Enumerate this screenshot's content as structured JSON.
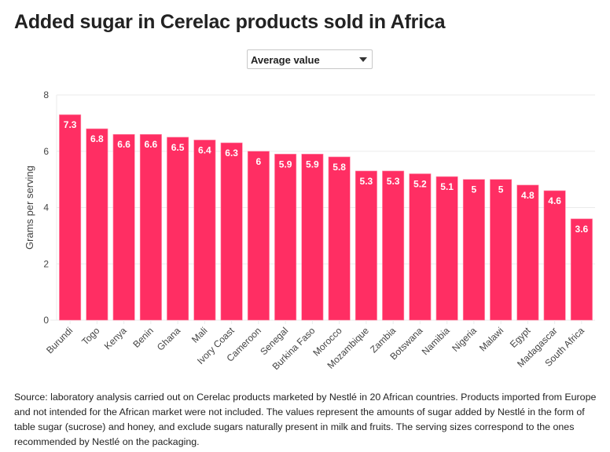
{
  "title": "Added sugar in Cerelac products sold in Africa",
  "dropdown": {
    "selected": "Average value",
    "icon": "caret-down-icon"
  },
  "colors": {
    "bar": "#ff2e63",
    "bar_edge": "#ff8fab",
    "grid": "#ebebeb",
    "label": "#ffffff"
  },
  "source": "Source: laboratory analysis carried out on Cerelac products marketed by Nestlé in 20 African countries. Products imported from Europe and not intended for the African market were not included. The values represent the amounts of sugar added by Nestlé in the form of table sugar (sucrose) and honey, and exclude sugars naturally present in milk and fruits. The serving sizes correspond to the ones recommended by Nestlé on the packaging.",
  "chart_data": {
    "type": "bar",
    "title": "Added sugar in Cerelac products sold in Africa",
    "xlabel": "",
    "ylabel": "Grams per serving",
    "ylim": [
      0,
      8
    ],
    "yticks": [
      0,
      2,
      4,
      6,
      8
    ],
    "grid": true,
    "legend": "none",
    "categories": [
      "Burundi",
      "Togo",
      "Kenya",
      "Benin",
      "Ghana",
      "Mali",
      "Ivory Coast",
      "Cameroon",
      "Senegal",
      "Burkina Faso",
      "Morocco",
      "Mozambique",
      "Zambia",
      "Botswana",
      "Namibia",
      "Nigeria",
      "Malawi",
      "Egypt",
      "Madagascar",
      "South Africa"
    ],
    "values": [
      7.3,
      6.8,
      6.6,
      6.6,
      6.5,
      6.4,
      6.3,
      6,
      5.9,
      5.9,
      5.8,
      5.3,
      5.3,
      5.2,
      5.1,
      5,
      5,
      4.8,
      4.6,
      3.6
    ],
    "data_labels": [
      "7.3",
      "6.8",
      "6.6",
      "6.6",
      "6.5",
      "6.4",
      "6.3",
      "6",
      "5.9",
      "5.9",
      "5.8",
      "5.3",
      "5.3",
      "5.2",
      "5.1",
      "5",
      "5",
      "4.8",
      "4.6",
      "3.6"
    ]
  }
}
